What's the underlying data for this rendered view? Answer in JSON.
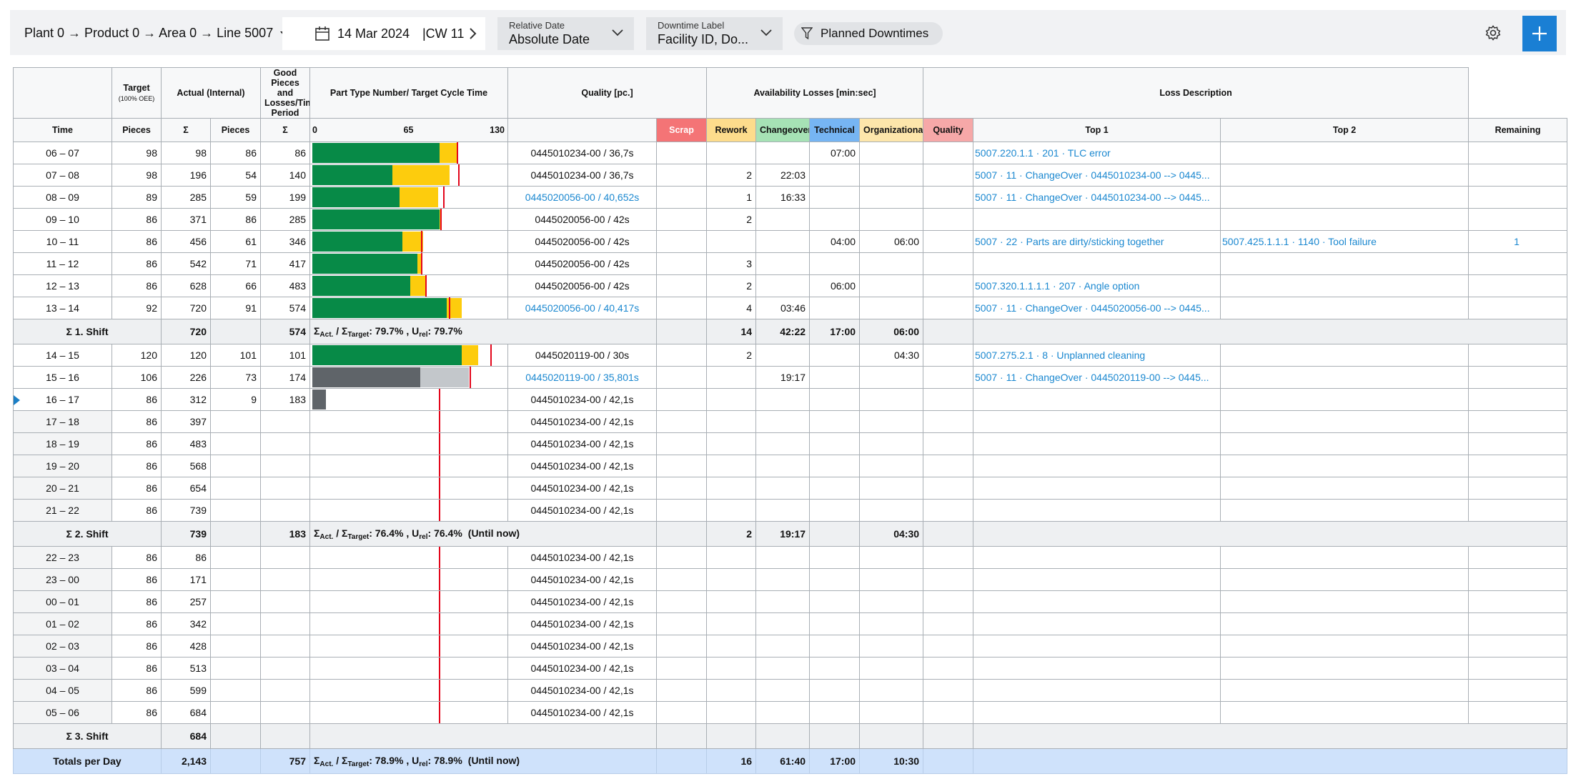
{
  "toolbar": {
    "breadcrumb": "Plant 0 → Product 0 → Area 0 → Line 5007",
    "date": "14 Mar 2024",
    "week": "|CW 11",
    "relative_date": {
      "label": "Relative Date",
      "value": "Absolute Date"
    },
    "downtime_label": {
      "label": "Downtime Label",
      "value": "Facility ID, Do..."
    },
    "filter": "Planned Downtimes"
  },
  "columns": {
    "target": "Target",
    "target_note": "(100% OEE)",
    "actual": "Actual (Internal)",
    "good": "Good Pieces and Losses/Time Period",
    "part": "Part Type Number/ Target Cycle Time",
    "quality_group": "Quality [pc.]",
    "availability_group": "Availability Losses [min:sec]",
    "loss_group": "Loss Description",
    "time": "Time",
    "pieces": "Pieces",
    "sum": "Σ",
    "scrap": "Scrap",
    "rework": "Rework",
    "changeover": "Changeover",
    "technical": "Technical",
    "organizational": "Organizational",
    "quality": "Quality",
    "top1": "Top 1",
    "top2": "Top 2",
    "remaining": "Remaining"
  },
  "bar_axis": {
    "lim": [
      0,
      130
    ],
    "ticks": [
      0,
      65,
      130
    ]
  },
  "bar_colors": {
    "good": "#078a47",
    "loss": "#fdcc0d",
    "target": "#e3061b"
  },
  "ratio_labels": {
    "sum": "Σ",
    "act": "Act.",
    "slash": " / ",
    "target": "Target",
    "colon": ": ",
    "comma": " , ",
    "u": "U",
    "rel": "rel"
  },
  "sections": [
    {
      "hours": [
        {
          "time": "06 – 07",
          "target": 98,
          "target_sum": 98,
          "actual": 86,
          "actual_sum": 86,
          "part": "0445010234-00 / 36,7s",
          "technical": "07:00",
          "top1": "5007.220.1.1 · 201 · TLC error",
          "bar": {
            "good": 86,
            "loss": 12,
            "target": 98
          }
        },
        {
          "time": "07 – 08",
          "target": 98,
          "target_sum": 196,
          "actual": 54,
          "actual_sum": 140,
          "part": "0445010234-00 / 36,7s",
          "rework": 2,
          "changeover": "22:03",
          "top1": "5007 · 11 · ChangeOver · 0445010234-00 --> 0445...",
          "bar": {
            "good": 54,
            "loss": 39,
            "target": 99
          }
        },
        {
          "time": "08 – 09",
          "target": 89,
          "target_sum": 285,
          "actual": 59,
          "actual_sum": 199,
          "part": "0445020056-00 / 40,652s",
          "part_link": true,
          "rework": 1,
          "changeover": "16:33",
          "top1": "5007 · 11 · ChangeOver · 0445010234-00 --> 0445...",
          "bar": {
            "good": 59,
            "loss": 26,
            "target": 89
          }
        },
        {
          "time": "09 – 10",
          "target": 86,
          "target_sum": 371,
          "actual": 86,
          "actual_sum": 285,
          "part": "0445020056-00 / 42s",
          "rework": 2,
          "bar": {
            "good": 86,
            "loss": 1,
            "target": 87
          }
        },
        {
          "time": "10 – 11",
          "target": 86,
          "target_sum": 456,
          "actual": 61,
          "actual_sum": 346,
          "part": "0445020056-00 / 42s",
          "technical": "04:00",
          "organizational": "06:00",
          "top1": "5007 · 22 · Parts are dirty/sticking together",
          "top2": "5007.425.1.1.1 · 1140 · Tool failure",
          "remaining": "1",
          "bar": {
            "good": 61,
            "loss": 14,
            "target": 74
          }
        },
        {
          "time": "11 – 12",
          "target": 86,
          "target_sum": 542,
          "actual": 71,
          "actual_sum": 417,
          "part": "0445020056-00 / 42s",
          "rework": 3,
          "bar": {
            "good": 71,
            "loss": 3,
            "target": 74
          }
        },
        {
          "time": "12 – 13",
          "target": 86,
          "target_sum": 628,
          "actual": 66,
          "actual_sum": 483,
          "part": "0445020056-00 / 42s",
          "rework": 2,
          "technical": "06:00",
          "top1": "5007.320.1.1.1.1 · 207 · Angle option",
          "bar": {
            "good": 66,
            "loss": 11,
            "target": 77
          }
        },
        {
          "time": "13 – 14",
          "target": 92,
          "target_sum": 720,
          "actual": 91,
          "actual_sum": 574,
          "part": "0445020056-00 / 40,417s",
          "part_link": true,
          "rework": 4,
          "changeover": "03:46",
          "top1": "5007 · 11 · ChangeOver · 0445020056-00 --> 0445...",
          "bar": {
            "good": 91,
            "loss": 10,
            "target": 93
          }
        }
      ],
      "shift": {
        "label": "Σ 1. Shift",
        "target_sum": 720,
        "actual_sum": 574,
        "ratio": "79.7%",
        "urel": "79.7%",
        "rework": 14,
        "changeover": "42:22",
        "technical": "17:00",
        "organizational": "06:00"
      }
    },
    {
      "hours": [
        {
          "time": "14 – 15",
          "target": 120,
          "target_sum": 120,
          "actual": 101,
          "actual_sum": 101,
          "part": "0445020119-00 / 30s",
          "rework": 2,
          "organizational": "04:30",
          "top1": "5007.275.2.1 · 8 · Unplanned cleaning",
          "bar": {
            "good": 101,
            "loss": 11,
            "target": 121
          }
        },
        {
          "time": "15 – 16",
          "target": 106,
          "target_sum": 226,
          "actual": 73,
          "actual_sum": 174,
          "part": "0445020119-00 / 35,801s",
          "part_link": true,
          "changeover": "19:17",
          "top1": "5007 · 11 · ChangeOver · 0445020119-00 --> 0445...",
          "bar": {
            "good": 73,
            "loss": 33,
            "target": 107,
            "good_color": "#5f6469",
            "loss_color": "#c3c7cb"
          }
        },
        {
          "time": "16 – 17",
          "target": 86,
          "target_sum": 312,
          "actual": 9,
          "actual_sum": 183,
          "part": "0445010234-00 / 42,1s",
          "current": true,
          "bar": {
            "good": 9,
            "target": 86,
            "good_color": "#5f6469"
          }
        },
        {
          "time": "17 – 18",
          "target": 86,
          "target_sum": 397,
          "part": "0445010234-00 / 42,1s",
          "bar": {
            "target": 86
          }
        },
        {
          "time": "18 – 19",
          "target": 86,
          "target_sum": 483,
          "part": "0445010234-00 / 42,1s",
          "bar": {
            "target": 86
          }
        },
        {
          "time": "19 – 20",
          "target": 86,
          "target_sum": 568,
          "part": "0445010234-00 / 42,1s",
          "bar": {
            "target": 86
          }
        },
        {
          "time": "20 – 21",
          "target": 86,
          "target_sum": 654,
          "part": "0445010234-00 / 42,1s",
          "bar": {
            "target": 86
          }
        },
        {
          "time": "21 – 22",
          "target": 86,
          "target_sum": 739,
          "part": "0445010234-00 / 42,1s",
          "bar": {
            "target": 86
          }
        }
      ],
      "shift": {
        "label": "Σ 2. Shift",
        "target_sum": 739,
        "actual_sum": 183,
        "ratio": "76.4%",
        "urel": "76.4%",
        "note": "(Until now)",
        "rework": 2,
        "changeover": "19:17",
        "organizational": "04:30"
      }
    },
    {
      "hours": [
        {
          "time": "22 – 23",
          "target": 86,
          "target_sum": 86,
          "part": "0445010234-00 / 42,1s",
          "bar": {
            "target": 86
          }
        },
        {
          "time": "23 – 00",
          "target": 86,
          "target_sum": 171,
          "part": "0445010234-00 / 42,1s",
          "bar": {
            "target": 86
          }
        },
        {
          "time": "00 – 01",
          "target": 86,
          "target_sum": 257,
          "part": "0445010234-00 / 42,1s",
          "bar": {
            "target": 86
          }
        },
        {
          "time": "01 – 02",
          "target": 86,
          "target_sum": 342,
          "part": "0445010234-00 / 42,1s",
          "bar": {
            "target": 86
          }
        },
        {
          "time": "02 – 03",
          "target": 86,
          "target_sum": 428,
          "part": "0445010234-00 / 42,1s",
          "bar": {
            "target": 86
          }
        },
        {
          "time": "03 – 04",
          "target": 86,
          "target_sum": 513,
          "part": "0445010234-00 / 42,1s",
          "bar": {
            "target": 86
          }
        },
        {
          "time": "04 – 05",
          "target": 86,
          "target_sum": 599,
          "part": "0445010234-00 / 42,1s",
          "bar": {
            "target": 86
          }
        },
        {
          "time": "05 – 06",
          "target": 86,
          "target_sum": 684,
          "part": "0445010234-00 / 42,1s",
          "bar": {
            "target": 86
          }
        }
      ],
      "shift": {
        "label": "Σ 3. Shift",
        "target_sum": 684
      }
    }
  ],
  "totals": {
    "label": "Totals per Day",
    "target_sum": "2,143",
    "actual_sum": 757,
    "ratio": "78.9%",
    "urel": "78.9%",
    "note": "(Until now)",
    "rework": 16,
    "changeover": "61:40",
    "technical": "17:00",
    "organizational": "10:30"
  }
}
